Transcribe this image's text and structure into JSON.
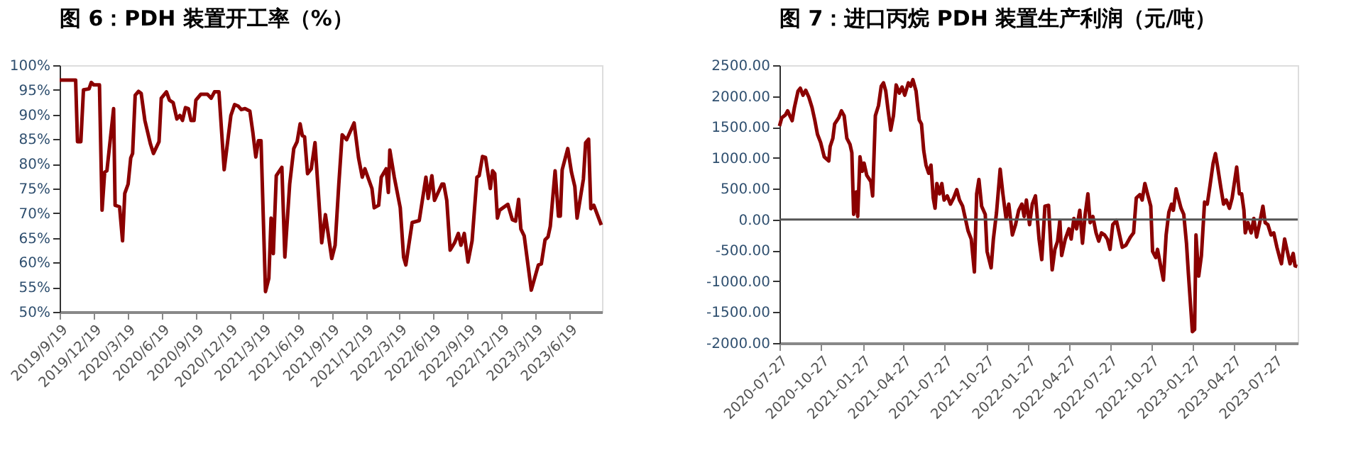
{
  "chart_data": [
    {
      "type": "line",
      "title": "图 6：PDH 装置开工率（%）",
      "x": [
        "2019-09-19",
        "2019-11-01",
        "2019-11-06",
        "2019-11-15",
        "2019-11-22",
        "2019-12-07",
        "2019-12-13",
        "2019-12-20",
        "2020-01-04",
        "2020-01-11",
        "2020-01-18",
        "2020-01-24",
        "2020-02-11",
        "2020-02-15",
        "2020-02-27",
        "2020-03-06",
        "2020-03-12",
        "2020-03-21",
        "2020-03-28",
        "2020-04-02",
        "2020-04-09",
        "2020-04-18",
        "2020-04-25",
        "2020-05-05",
        "2020-05-20",
        "2020-05-28",
        "2020-06-12",
        "2020-06-18",
        "2020-07-02",
        "2020-07-10",
        "2020-07-20",
        "2020-07-30",
        "2020-08-07",
        "2020-08-14",
        "2020-08-22",
        "2020-08-30",
        "2020-09-06",
        "2020-09-14",
        "2020-09-19",
        "2020-10-02",
        "2020-10-20",
        "2020-10-30",
        "2020-11-08",
        "2020-11-20",
        "2020-12-04",
        "2020-12-22",
        "2021-01-01",
        "2021-01-11",
        "2021-01-19",
        "2021-01-29",
        "2021-02-11",
        "2021-02-19",
        "2021-02-27",
        "2021-03-06",
        "2021-03-13",
        "2021-03-25",
        "2021-04-03",
        "2021-04-09",
        "2021-04-15",
        "2021-04-23",
        "2021-05-08",
        "2021-05-16",
        "2021-05-29",
        "2021-06-09",
        "2021-06-18",
        "2021-06-26",
        "2021-07-02",
        "2021-07-08",
        "2021-07-16",
        "2021-07-26",
        "2021-08-05",
        "2021-08-23",
        "2021-09-02",
        "2021-09-19",
        "2021-09-28",
        "2021-10-08",
        "2021-10-17",
        "2021-10-29",
        "2021-11-18",
        "2021-11-30",
        "2021-12-10",
        "2021-12-17",
        "2022-01-05",
        "2022-01-11",
        "2022-01-23",
        "2022-01-30",
        "2022-02-12",
        "2022-02-18",
        "2022-02-22",
        "2022-03-06",
        "2022-03-22",
        "2022-03-31",
        "2022-04-06",
        "2022-04-23",
        "2022-05-12",
        "2022-05-30",
        "2022-06-05",
        "2022-06-15",
        "2022-06-22",
        "2022-07-12",
        "2022-07-17",
        "2022-07-25",
        "2022-08-03",
        "2022-08-15",
        "2022-08-25",
        "2022-09-01",
        "2022-09-10",
        "2022-09-20",
        "2022-10-01",
        "2022-10-14",
        "2022-10-20",
        "2022-10-29",
        "2022-11-06",
        "2022-11-19",
        "2022-11-25",
        "2022-12-01",
        "2022-12-08",
        "2022-12-14",
        "2023-01-05",
        "2023-01-17",
        "2023-01-26",
        "2023-02-03",
        "2023-02-09",
        "2023-02-18",
        "2023-03-09",
        "2023-03-18",
        "2023-03-28",
        "2023-04-05",
        "2023-04-15",
        "2023-04-23",
        "2023-04-29",
        "2023-05-12",
        "2023-05-21",
        "2023-05-26",
        "2023-05-31",
        "2023-06-15",
        "2023-06-25",
        "2023-07-04",
        "2023-07-10",
        "2023-07-27",
        "2023-08-02",
        "2023-08-10",
        "2023-08-16",
        "2023-08-24",
        "2023-09-13"
      ],
      "series": [
        {
          "color": "#8b0000",
          "values": [
            97,
            97,
            84.5,
            84.5,
            95,
            95.2,
            96.5,
            96,
            96,
            70.6,
            78.3,
            78.6,
            91.2,
            71.6,
            71.3,
            64.4,
            74,
            75.9,
            81.2,
            82.1,
            93.9,
            94.7,
            94.3,
            88.8,
            84,
            82.1,
            84.5,
            93.3,
            94.6,
            92.9,
            92.4,
            89.1,
            89.8,
            88.8,
            91.4,
            91.2,
            88.8,
            88.8,
            92.9,
            94.1,
            94.1,
            93.3,
            94.6,
            94.6,
            78.8,
            89.8,
            92,
            91.7,
            91,
            91.2,
            90.7,
            86.4,
            81.4,
            84.7,
            84.7,
            54.1,
            56.8,
            69,
            61.8,
            77.6,
            79.3,
            61.1,
            75.9,
            83.1,
            84.5,
            88.1,
            85.7,
            85.5,
            78,
            79,
            84.3,
            64,
            69.7,
            60.8,
            63.5,
            75.9,
            85.9,
            84.9,
            88.3,
            81.2,
            77.3,
            79,
            75,
            71.1,
            71.6,
            77.3,
            79,
            74.2,
            82.8,
            77.3,
            71.1,
            61.1,
            59.5,
            68.1,
            68.5,
            77.3,
            73,
            77.6,
            72.6,
            75.9,
            75.9,
            72.6,
            62.5,
            64,
            65.9,
            63.5,
            65.9,
            60.1,
            64.4,
            77.3,
            77.6,
            81.5,
            81.3,
            75,
            78.6,
            78,
            69,
            70.6,
            71.8,
            68.7,
            68.4,
            72.8,
            66.8,
            65.4,
            54.4,
            56.8,
            59.5,
            59.7,
            64.6,
            65.2,
            67.3,
            78.6,
            69.4,
            69.4,
            78.8,
            83.1,
            78.3,
            75.4,
            69,
            76.9,
            84.3,
            85,
            70.9,
            71.6,
            67.6
          ]
        }
      ],
      "xlim": [
        "2019-09-19",
        "2023-09-15"
      ],
      "xticks": [
        {
          "value": "2019-09-19",
          "label": "2019/9/19"
        },
        {
          "value": "2019-12-19",
          "label": "2019/12/19"
        },
        {
          "value": "2020-03-19",
          "label": "2020/3/19"
        },
        {
          "value": "2020-06-19",
          "label": "2020/6/19"
        },
        {
          "value": "2020-09-19",
          "label": "2020/9/19"
        },
        {
          "value": "2020-12-19",
          "label": "2020/12/19"
        },
        {
          "value": "2021-03-19",
          "label": "2021/3/19"
        },
        {
          "value": "2021-06-19",
          "label": "2021/6/19"
        },
        {
          "value": "2021-09-19",
          "label": "2021/9/19"
        },
        {
          "value": "2021-12-19",
          "label": "2021/12/19"
        },
        {
          "value": "2022-03-19",
          "label": "2022/3/19"
        },
        {
          "value": "2022-06-19",
          "label": "2022/6/19"
        },
        {
          "value": "2022-09-19",
          "label": "2022/9/19"
        },
        {
          "value": "2022-12-19",
          "label": "2022/12/19"
        },
        {
          "value": "2023-03-19",
          "label": "2023/3/19"
        },
        {
          "value": "2023-06-19",
          "label": "2023/6/19"
        }
      ],
      "ylim": [
        50,
        100
      ],
      "yticks": [
        {
          "value": 50,
          "label": "50%"
        },
        {
          "value": 55,
          "label": "55%"
        },
        {
          "value": 60,
          "label": "60%"
        },
        {
          "value": 65,
          "label": "65%"
        },
        {
          "value": 70,
          "label": "70%"
        },
        {
          "value": 75,
          "label": "75%"
        },
        {
          "value": 80,
          "label": "80%"
        },
        {
          "value": 85,
          "label": "85%"
        },
        {
          "value": 90,
          "label": "90%"
        },
        {
          "value": 95,
          "label": "95%"
        },
        {
          "value": 100,
          "label": "100%"
        }
      ]
    },
    {
      "type": "line",
      "title": "图 7：进口丙烷 PDH 装置生产利润（元/吨）",
      "x": [
        "2020-07-27",
        "2020-08-01",
        "2020-08-09",
        "2020-08-14",
        "2020-08-19",
        "2020-08-24",
        "2020-08-29",
        "2020-09-06",
        "2020-09-11",
        "2020-09-17",
        "2020-09-23",
        "2020-09-30",
        "2020-10-07",
        "2020-10-13",
        "2020-10-19",
        "2020-10-26",
        "2020-11-03",
        "2020-11-13",
        "2020-11-16",
        "2020-11-22",
        "2020-11-26",
        "2020-12-05",
        "2020-12-11",
        "2020-12-17",
        "2020-12-23",
        "2020-12-30",
        "2021-01-03",
        "2021-01-07",
        "2021-01-13",
        "2021-01-16",
        "2021-01-21",
        "2021-01-26",
        "2021-01-30",
        "2021-02-05",
        "2021-02-14",
        "2021-02-18",
        "2021-02-24",
        "2021-03-03",
        "2021-03-09",
        "2021-03-14",
        "2021-03-19",
        "2021-03-24",
        "2021-03-30",
        "2021-04-05",
        "2021-04-11",
        "2021-04-18",
        "2021-04-24",
        "2021-04-30",
        "2021-05-08",
        "2021-05-13",
        "2021-05-18",
        "2021-05-25",
        "2021-06-01",
        "2021-06-06",
        "2021-06-11",
        "2021-06-16",
        "2021-06-22",
        "2021-06-27",
        "2021-07-02",
        "2021-07-06",
        "2021-07-10",
        "2021-07-16",
        "2021-07-21",
        "2021-07-26",
        "2021-08-02",
        "2021-08-09",
        "2021-08-16",
        "2021-08-23",
        "2021-08-29",
        "2021-09-05",
        "2021-09-11",
        "2021-09-17",
        "2021-09-24",
        "2021-10-01",
        "2021-10-06",
        "2021-10-11",
        "2021-10-17",
        "2021-10-25",
        "2021-10-29",
        "2021-11-07",
        "2021-11-12",
        "2021-11-19",
        "2021-11-27",
        "2021-12-03",
        "2021-12-10",
        "2021-12-16",
        "2021-12-24",
        "2021-12-31",
        "2022-01-07",
        "2022-01-14",
        "2022-01-19",
        "2022-01-24",
        "2022-01-31",
        "2022-02-06",
        "2022-02-13",
        "2022-02-21",
        "2022-02-27",
        "2022-03-06",
        "2022-03-14",
        "2022-03-22",
        "2022-03-28",
        "2022-04-03",
        "2022-04-08",
        "2022-04-12",
        "2022-04-20",
        "2022-04-28",
        "2022-05-03",
        "2022-05-09",
        "2022-05-15",
        "2022-05-22",
        "2022-05-28",
        "2022-06-03",
        "2022-06-09",
        "2022-06-14",
        "2022-06-20",
        "2022-06-27",
        "2022-07-03",
        "2022-07-09",
        "2022-07-16",
        "2022-07-22",
        "2022-07-28",
        "2022-08-03",
        "2022-08-11",
        "2022-08-18",
        "2022-08-24",
        "2022-09-01",
        "2022-09-11",
        "2022-09-18",
        "2022-09-24",
        "2022-10-02",
        "2022-10-07",
        "2022-10-13",
        "2022-10-20",
        "2022-10-26",
        "2022-10-30",
        "2022-11-06",
        "2022-11-10",
        "2022-11-16",
        "2022-11-23",
        "2022-11-29",
        "2022-12-05",
        "2022-12-11",
        "2022-12-15",
        "2022-12-21",
        "2022-12-26",
        "2023-01-01",
        "2023-01-07",
        "2023-01-13",
        "2023-01-17",
        "2023-01-22",
        "2023-01-26",
        "2023-01-31",
        "2023-02-03",
        "2023-02-09",
        "2023-02-15",
        "2023-02-22",
        "2023-02-28",
        "2023-03-06",
        "2023-03-13",
        "2023-03-18",
        "2023-03-23",
        "2023-03-30",
        "2023-04-05",
        "2023-04-11",
        "2023-04-18",
        "2023-04-24",
        "2023-04-30",
        "2023-05-04",
        "2023-05-10",
        "2023-05-15",
        "2023-05-20",
        "2023-05-23",
        "2023-05-29",
        "2023-06-05",
        "2023-06-11",
        "2023-06-17",
        "2023-06-24",
        "2023-07-01",
        "2023-07-06",
        "2023-07-12",
        "2023-07-19",
        "2023-07-25",
        "2023-08-01",
        "2023-08-07",
        "2023-08-11",
        "2023-08-18",
        "2023-08-24",
        "2023-08-30",
        "2023-09-06",
        "2023-09-10",
        "2023-09-15"
      ],
      "series": [
        {
          "color": "#8b0000",
          "values": [
            1515,
            1648,
            1694,
            1761,
            1681,
            1601,
            1814,
            2081,
            2127,
            2014,
            2094,
            1981,
            1814,
            1614,
            1381,
            1248,
            1015,
            949,
            1182,
            1315,
            1548,
            1648,
            1761,
            1681,
            1315,
            1215,
            1082,
            83,
            449,
            50,
            1015,
            782,
            915,
            716,
            616,
            383,
            1681,
            1847,
            2160,
            2214,
            2081,
            1781,
            1448,
            1681,
            2180,
            2047,
            2147,
            2014,
            2214,
            2160,
            2267,
            2081,
            1614,
            1548,
            1115,
            882,
            749,
            882,
            349,
            183,
            583,
            416,
            583,
            316,
            383,
            250,
            349,
            483,
            316,
            216,
            17,
            -183,
            -316,
            -849,
            416,
            649,
            216,
            83,
            -516,
            -782,
            -316,
            117,
            815,
            416,
            17,
            250,
            -250,
            -83,
            150,
            250,
            50,
            316,
            -83,
            250,
            383,
            -316,
            -649,
            216,
            230,
            -816,
            -483,
            -350,
            -17,
            -583,
            -316,
            -150,
            -316,
            17,
            -150,
            150,
            -383,
            83,
            416,
            -50,
            50,
            -216,
            -350,
            -216,
            -250,
            -316,
            -483,
            -83,
            -17,
            -250,
            -449,
            -416,
            -283,
            -216,
            349,
            403,
            316,
            583,
            383,
            216,
            -516,
            -616,
            -483,
            -716,
            -982,
            -250,
            117,
            250,
            150,
            496,
            349,
            183,
            83,
            -383,
            -849,
            -1382,
            -1815,
            -1781,
            -250,
            -916,
            -583,
            283,
            250,
            549,
            916,
            1068,
            849,
            516,
            250,
            316,
            183,
            349,
            649,
            849,
            416,
            416,
            150,
            -216,
            -50,
            -216,
            17,
            -283,
            -50,
            216,
            -50,
            -83,
            -250,
            -216,
            -449,
            -616,
            -716,
            -316,
            -516,
            -716,
            -549,
            -749,
            -760
          ]
        }
      ],
      "xlim": [
        "2020-07-27",
        "2023-09-16"
      ],
      "xticks": [
        {
          "value": "2020-07-27",
          "label": "2020-07-27"
        },
        {
          "value": "2020-10-27",
          "label": "2020-10-27"
        },
        {
          "value": "2021-01-27",
          "label": "2021-01-27"
        },
        {
          "value": "2021-04-27",
          "label": "2021-04-27"
        },
        {
          "value": "2021-07-27",
          "label": "2021-07-27"
        },
        {
          "value": "2021-10-27",
          "label": "2021-10-27"
        },
        {
          "value": "2022-01-27",
          "label": "2022-01-27"
        },
        {
          "value": "2022-04-27",
          "label": "2022-04-27"
        },
        {
          "value": "2022-07-27",
          "label": "2022-07-27"
        },
        {
          "value": "2022-10-27",
          "label": "2022-10-27"
        },
        {
          "value": "2023-01-27",
          "label": "2023-01-27"
        },
        {
          "value": "2023-04-27",
          "label": "2023-04-27"
        },
        {
          "value": "2023-07-27",
          "label": "2023-07-27"
        }
      ],
      "ylim": [
        -2000,
        2500
      ],
      "ref_lines": [
        {
          "axis": "y",
          "value": 0,
          "color": "#555555"
        }
      ],
      "yticks": [
        {
          "value": -2000,
          "label": "-2000.00"
        },
        {
          "value": -1500,
          "label": "-1500.00"
        },
        {
          "value": -1000,
          "label": "-1000.00"
        },
        {
          "value": -500,
          "label": "-500.00"
        },
        {
          "value": 0,
          "label": "0.00"
        },
        {
          "value": 500,
          "label": "500.00"
        },
        {
          "value": 1000,
          "label": "1000.00"
        },
        {
          "value": 1500,
          "label": "1500.00"
        },
        {
          "value": 2000,
          "label": "2000.00"
        },
        {
          "value": 2500,
          "label": "2500.00"
        }
      ]
    }
  ]
}
